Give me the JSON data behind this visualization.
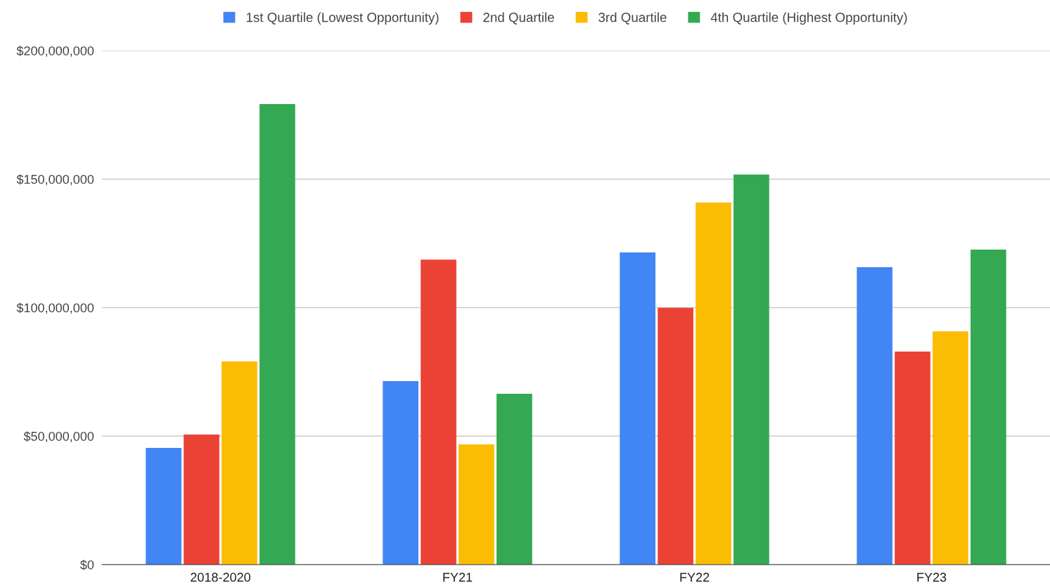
{
  "chart_data": {
    "type": "bar",
    "categories": [
      "2018-2020",
      "FY21",
      "FY22",
      "FY23"
    ],
    "series": [
      {
        "name": "1st Quartile (Lowest Opportunity)",
        "color": "#4285f4",
        "values": [
          45400000,
          71400000,
          121500000,
          115700000
        ]
      },
      {
        "name": "2nd Quartile",
        "color": "#ea4335",
        "values": [
          50600000,
          118700000,
          99900000,
          82900000
        ]
      },
      {
        "name": "3rd Quartile",
        "color": "#fbbc04",
        "values": [
          79100000,
          46800000,
          140900000,
          90800000
        ]
      },
      {
        "name": "4th Quartile (Highest Opportunity)",
        "color": "#34a853",
        "values": [
          179200000,
          66500000,
          151800000,
          122600000
        ]
      }
    ],
    "ylim": [
      0,
      200000000
    ],
    "yticks": [
      {
        "value": 0,
        "label": "$0"
      },
      {
        "value": 50000000,
        "label": "$50,000,000"
      },
      {
        "value": 100000000,
        "label": "$100,000,000"
      },
      {
        "value": 150000000,
        "label": "$150,000,000"
      },
      {
        "value": 200000000,
        "label": "$200,000,000"
      }
    ],
    "grid": "y",
    "legend": "top"
  }
}
